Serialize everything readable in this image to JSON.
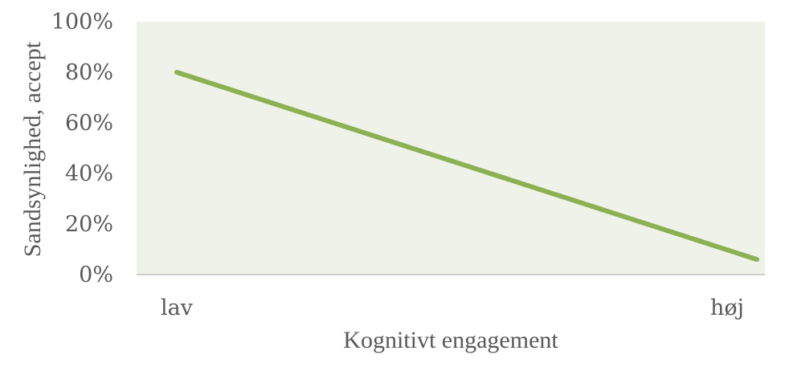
{
  "chart_data": {
    "type": "line",
    "categories": [
      "lav",
      "høj"
    ],
    "series": [
      {
        "values": [
          80,
          6
        ]
      }
    ],
    "x_tick_labels": [
      "lav",
      "høj"
    ],
    "y_tick_labels": [
      "0%",
      "20%",
      "40%",
      "60%",
      "80%",
      "100%"
    ],
    "ylim": [
      0,
      100
    ],
    "xlabel": "Kognitivt engagement",
    "ylabel": "Sandsynlighed, accept",
    "grid": false,
    "legend": "none",
    "colors": {
      "plot_background": "#eff2e9",
      "line": "#8bb153",
      "axis": "#a6a6a6",
      "text": "#595959"
    }
  }
}
